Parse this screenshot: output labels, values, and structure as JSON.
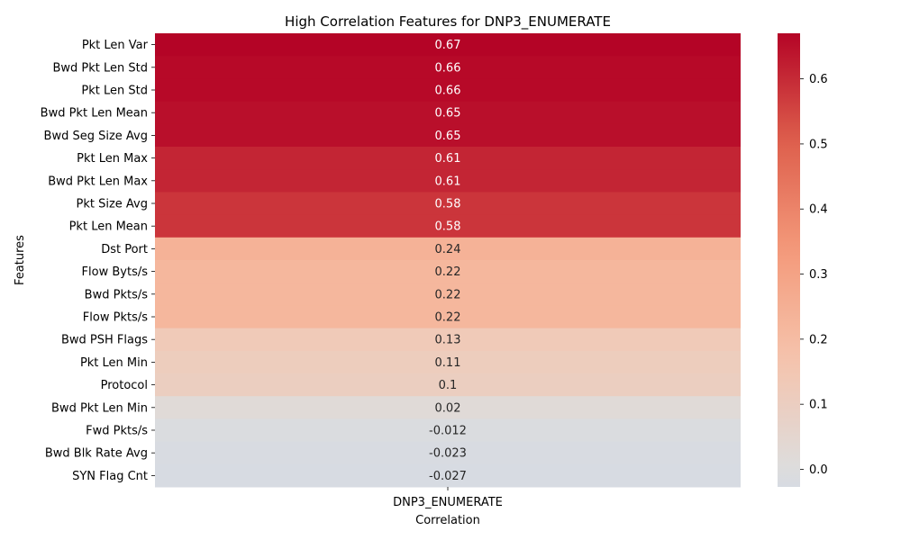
{
  "chart_data": {
    "type": "heatmap",
    "title": "High Correlation Features for DNP3_ENUMERATE",
    "xlabel": "Correlation",
    "ylabel": "Features",
    "columns": [
      "DNP3_ENUMERATE"
    ],
    "rows": [
      {
        "feature": "Pkt Len Var",
        "value": 0.67,
        "label": "0.67"
      },
      {
        "feature": "Bwd Pkt Len Std",
        "value": 0.66,
        "label": "0.66"
      },
      {
        "feature": "Pkt Len Std",
        "value": 0.66,
        "label": "0.66"
      },
      {
        "feature": "Bwd Pkt Len Mean",
        "value": 0.65,
        "label": "0.65"
      },
      {
        "feature": "Bwd Seg Size Avg",
        "value": 0.65,
        "label": "0.65"
      },
      {
        "feature": "Pkt Len Max",
        "value": 0.61,
        "label": "0.61"
      },
      {
        "feature": "Bwd Pkt Len Max",
        "value": 0.61,
        "label": "0.61"
      },
      {
        "feature": "Pkt Size Avg",
        "value": 0.58,
        "label": "0.58"
      },
      {
        "feature": "Pkt Len Mean",
        "value": 0.58,
        "label": "0.58"
      },
      {
        "feature": "Dst Port",
        "value": 0.24,
        "label": "0.24"
      },
      {
        "feature": "Flow Byts/s",
        "value": 0.22,
        "label": "0.22"
      },
      {
        "feature": "Bwd Pkts/s",
        "value": 0.22,
        "label": "0.22"
      },
      {
        "feature": "Flow Pkts/s",
        "value": 0.22,
        "label": "0.22"
      },
      {
        "feature": "Bwd PSH Flags",
        "value": 0.13,
        "label": "0.13"
      },
      {
        "feature": "Pkt Len Min",
        "value": 0.11,
        "label": "0.11"
      },
      {
        "feature": "Protocol",
        "value": 0.1,
        "label": "0.1"
      },
      {
        "feature": "Bwd Pkt Len Min",
        "value": 0.02,
        "label": "0.02"
      },
      {
        "feature": "Fwd Pkts/s",
        "value": -0.012,
        "label": "-0.012"
      },
      {
        "feature": "Bwd Blk Rate Avg",
        "value": -0.023,
        "label": "-0.023"
      },
      {
        "feature": "SYN Flag Cnt",
        "value": -0.027,
        "label": "-0.027"
      }
    ],
    "colorbar": {
      "colormap": "coolwarm",
      "vmin": -0.027,
      "vmax": 0.67,
      "center": 0,
      "ticks": [
        0.0,
        0.1,
        0.2,
        0.3,
        0.4,
        0.5,
        0.6
      ],
      "tick_labels": [
        "0.0",
        "0.1",
        "0.2",
        "0.3",
        "0.4",
        "0.5",
        "0.6"
      ]
    },
    "grid": false,
    "legend": "colorbar-right"
  }
}
